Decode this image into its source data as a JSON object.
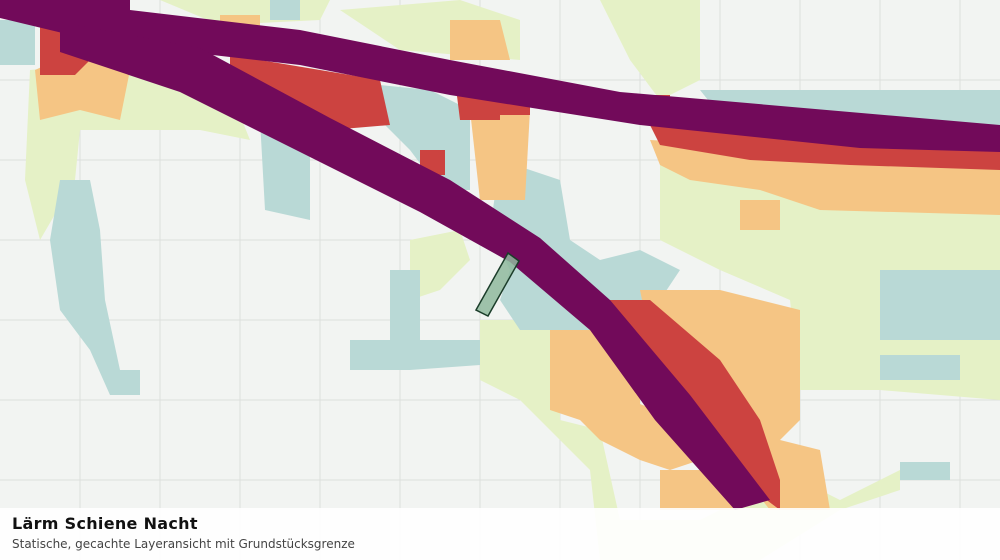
{
  "title": "Lärm Schiene Nacht",
  "subtitle": "Statische, gecachte Layeransicht mit Grundstücksgrenze"
}
